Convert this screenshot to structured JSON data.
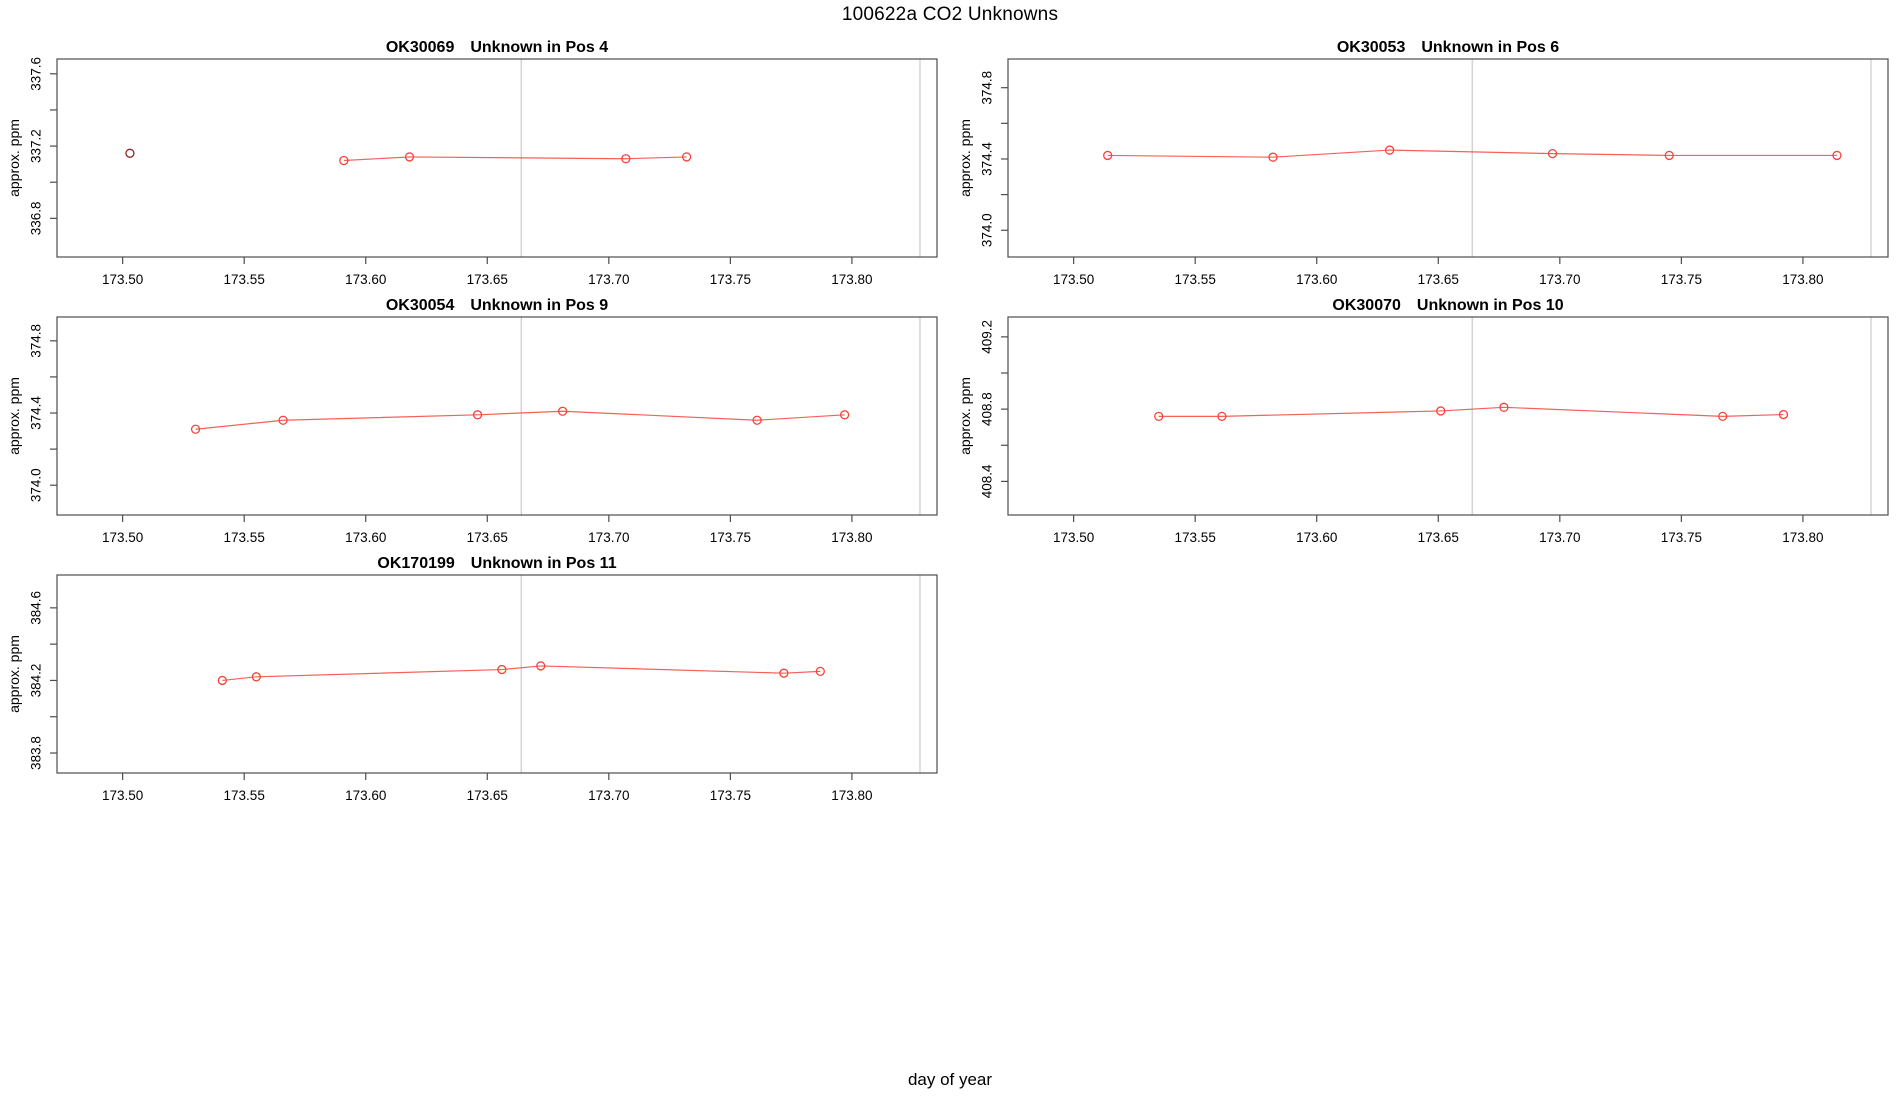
{
  "figure": {
    "title": "100622a  CO2 Unknowns",
    "xlabel": "day of year"
  },
  "colors": {
    "series_red": "#f5443a",
    "outlier_dark_red": "#8b2724",
    "reference_line_gray": "#d4d4d4",
    "axis_gray": "#4d4d4d",
    "text_black": "#000000"
  },
  "chart_data": [
    {
      "type": "line",
      "sample_id": "OK30069",
      "subtitle": "Unknown in Pos 4",
      "title": "OK30069   Unknown in Pos 4",
      "ylabel": "approx. ppm",
      "xlabel": "day of year",
      "xlim": [
        173.473,
        173.835
      ],
      "ylim": [
        336.586,
        337.682
      ],
      "x_ticks": [
        173.5,
        173.55,
        173.6,
        173.65,
        173.7,
        173.75,
        173.8
      ],
      "x_tick_labels": [
        "173.50",
        "173.55",
        "173.60",
        "173.65",
        "173.70",
        "173.75",
        "173.80"
      ],
      "y_ticks": [
        336.8,
        337.0,
        337.2,
        337.4,
        337.6
      ],
      "y_tick_labels": [
        "336.8",
        "",
        "337.2",
        "",
        "337.6"
      ],
      "vlines": [
        173.664,
        173.828
      ],
      "grid": false,
      "series": [
        {
          "name": "isolated-measurement",
          "color": "#8b2724",
          "line": false,
          "x": [
            173.503
          ],
          "y": [
            337.16
          ]
        },
        {
          "name": "co2-run",
          "color": "#f5443a",
          "line": true,
          "x": [
            173.591,
            173.618,
            173.707,
            173.732
          ],
          "y": [
            337.12,
            337.14,
            337.13,
            337.14
          ]
        }
      ]
    },
    {
      "type": "line",
      "sample_id": "OK30053",
      "subtitle": "Unknown in Pos 6",
      "title": "OK30053   Unknown in Pos 6",
      "ylabel": "approx. ppm",
      "xlabel": "day of year",
      "xlim": [
        173.473,
        173.835
      ],
      "ylim": [
        373.85,
        374.961
      ],
      "x_ticks": [
        173.5,
        173.55,
        173.6,
        173.65,
        173.7,
        173.75,
        173.8
      ],
      "x_tick_labels": [
        "173.50",
        "173.55",
        "173.60",
        "173.65",
        "173.70",
        "173.75",
        "173.80"
      ],
      "y_ticks": [
        374.0,
        374.2,
        374.4,
        374.6,
        374.8
      ],
      "y_tick_labels": [
        "374.0",
        "",
        "374.4",
        "",
        "374.8"
      ],
      "vlines": [
        173.664,
        173.828
      ],
      "grid": false,
      "series": [
        {
          "name": "co2-run",
          "color": "#f5443a",
          "line": true,
          "x": [
            173.514,
            173.582,
            173.63,
            173.697,
            173.745,
            173.814
          ],
          "y": [
            374.42,
            374.41,
            374.45,
            374.43,
            374.42,
            374.42
          ]
        }
      ]
    },
    {
      "type": "line",
      "sample_id": "OK30054",
      "subtitle": "Unknown in Pos 9",
      "title": "OK30054   Unknown in Pos 9",
      "ylabel": "approx. ppm",
      "xlabel": "day of year",
      "xlim": [
        173.473,
        173.835
      ],
      "ylim": [
        373.835,
        374.932
      ],
      "x_ticks": [
        173.5,
        173.55,
        173.6,
        173.65,
        173.7,
        173.75,
        173.8
      ],
      "x_tick_labels": [
        "173.50",
        "173.55",
        "173.60",
        "173.65",
        "173.70",
        "173.75",
        "173.80"
      ],
      "y_ticks": [
        374.0,
        374.2,
        374.4,
        374.6,
        374.8
      ],
      "y_tick_labels": [
        "374.0",
        "",
        "374.4",
        "",
        "374.8"
      ],
      "vlines": [
        173.664,
        173.828
      ],
      "grid": false,
      "series": [
        {
          "name": "co2-run",
          "color": "#f5443a",
          "line": true,
          "x": [
            173.53,
            173.566,
            173.646,
            173.681,
            173.761,
            173.797
          ],
          "y": [
            374.31,
            374.36,
            374.39,
            374.41,
            374.36,
            374.39
          ]
        }
      ]
    },
    {
      "type": "line",
      "sample_id": "OK30070",
      "subtitle": "Unknown in Pos 10",
      "title": "OK30070   Unknown in Pos 10",
      "ylabel": "approx. ppm",
      "xlabel": "day of year",
      "xlim": [
        173.473,
        173.835
      ],
      "ylim": [
        408.214,
        409.31
      ],
      "x_ticks": [
        173.5,
        173.55,
        173.6,
        173.65,
        173.7,
        173.75,
        173.8
      ],
      "x_tick_labels": [
        "173.50",
        "173.55",
        "173.60",
        "173.65",
        "173.70",
        "173.75",
        "173.80"
      ],
      "y_ticks": [
        408.4,
        408.6,
        408.8,
        409.0,
        409.2
      ],
      "y_tick_labels": [
        "408.4",
        "",
        "408.8",
        "",
        "409.2"
      ],
      "vlines": [
        173.664,
        173.828
      ],
      "grid": false,
      "series": [
        {
          "name": "co2-run",
          "color": "#f5443a",
          "line": true,
          "x": [
            173.535,
            173.561,
            173.651,
            173.677,
            173.767,
            173.792
          ],
          "y": [
            408.76,
            408.76,
            408.79,
            408.81,
            408.76,
            408.77
          ]
        }
      ]
    },
    {
      "type": "line",
      "sample_id": "OK170199",
      "subtitle": "Unknown in Pos 11",
      "title": "OK170199   Unknown in Pos 11",
      "ylabel": "approx. ppm",
      "xlabel": "day of year",
      "xlim": [
        173.473,
        173.835
      ],
      "ylim": [
        383.69,
        384.781
      ],
      "x_ticks": [
        173.5,
        173.55,
        173.6,
        173.65,
        173.7,
        173.75,
        173.8
      ],
      "x_tick_labels": [
        "173.50",
        "173.55",
        "173.60",
        "173.65",
        "173.70",
        "173.75",
        "173.80"
      ],
      "y_ticks": [
        383.8,
        384.0,
        384.2,
        384.4,
        384.6
      ],
      "y_tick_labels": [
        "383.8",
        "",
        "384.2",
        "",
        "384.6"
      ],
      "vlines": [
        173.664,
        173.828
      ],
      "grid": false,
      "series": [
        {
          "name": "co2-run",
          "color": "#f5443a",
          "line": true,
          "x": [
            173.541,
            173.555,
            173.656,
            173.672,
            173.772,
            173.787
          ],
          "y": [
            384.2,
            384.22,
            384.26,
            384.28,
            384.24,
            384.25
          ]
        }
      ]
    }
  ]
}
